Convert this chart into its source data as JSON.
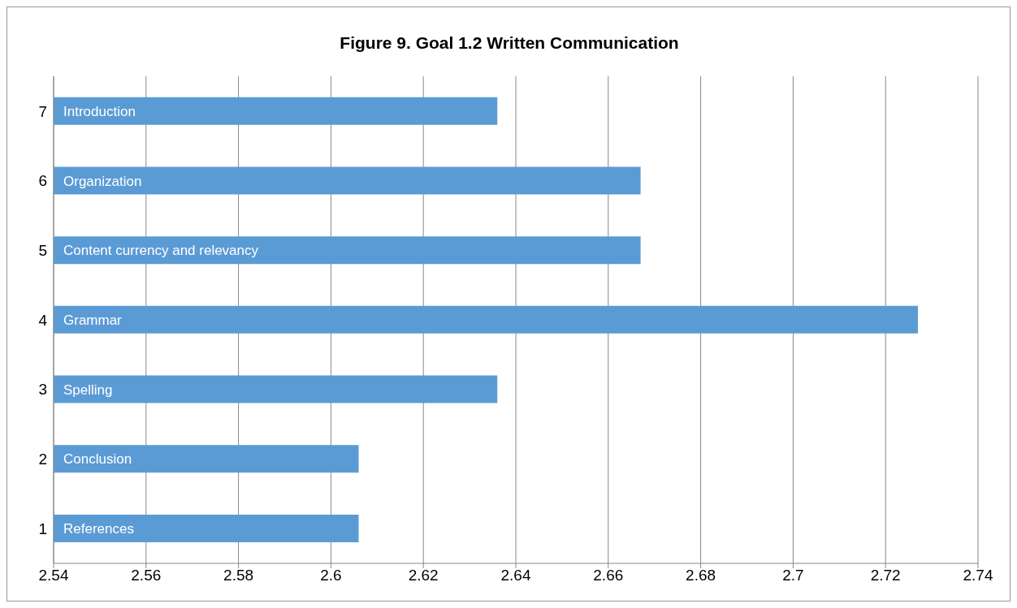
{
  "chart_data": {
    "type": "bar",
    "orientation": "horizontal",
    "title": "Figure 9. Goal 1.2 Written Communication",
    "categories": [
      "7",
      "6",
      "5",
      "4",
      "3",
      "2",
      "1"
    ],
    "values": [
      2.636,
      2.667,
      2.667,
      2.727,
      2.636,
      2.606,
      2.606
    ],
    "color": "#5b9bd5",
    "xlim": [
      2.54,
      2.74
    ],
    "xticks": [
      2.54,
      2.56,
      2.58,
      2.6,
      2.62,
      2.64,
      2.66,
      2.68,
      2.7,
      2.72,
      2.74
    ],
    "grid": "x",
    "annotations": [
      "Introduction",
      "Organization",
      "Content currency and relevancy",
      "Grammar",
      "Spelling",
      "Conclusion",
      "References"
    ]
  }
}
